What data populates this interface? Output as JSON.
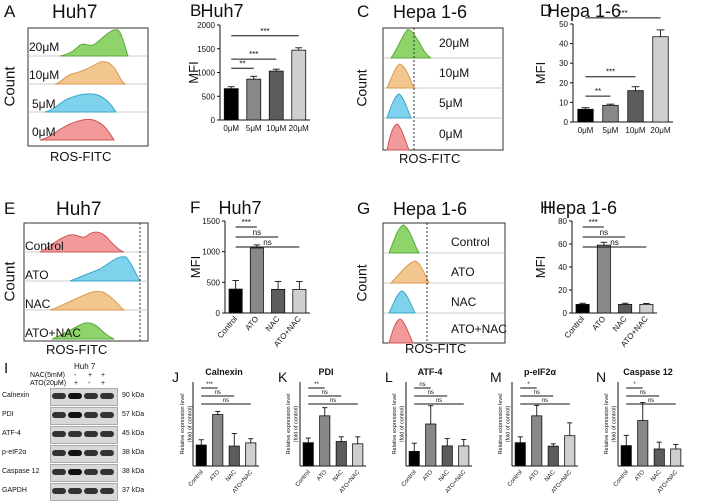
{
  "panels": {
    "A": {
      "letter": "A",
      "title": "Huh7",
      "xlabel": "ROS-FITC",
      "ylabel": "Count",
      "rows": [
        "20μM",
        "10μM",
        "5μM",
        "0μM"
      ]
    },
    "C": {
      "letter": "C",
      "title": "Hepa 1-6",
      "xlabel": "ROS-FITC",
      "ylabel": "Count",
      "rows": [
        "20μM",
        "10μM",
        "5μM",
        "0μM"
      ]
    },
    "E": {
      "letter": "E",
      "title": "Huh7",
      "xlabel": "ROS-FITC",
      "ylabel": "Count",
      "rows": [
        "Control",
        "ATO",
        "NAC",
        "ATO+NAC"
      ]
    },
    "G": {
      "letter": "G",
      "title": "Hepa 1-6",
      "xlabel": "ROS-FITC",
      "ylabel": "Count",
      "rows": [
        "Control",
        "ATO",
        "NAC",
        "ATO+NAC"
      ]
    },
    "I": {
      "letter": "I",
      "title": "Huh 7",
      "treat_rows": [
        {
          "label": "NAC(5mM)",
          "signs": [
            "-",
            "-",
            "+",
            "+"
          ]
        },
        {
          "label": "ATO(20μM)",
          "signs": [
            "-",
            "+",
            "-",
            "+"
          ]
        }
      ],
      "blots": [
        {
          "name": "Calnexin",
          "kda": "90 kDa"
        },
        {
          "name": "PDI",
          "kda": "57 kDa"
        },
        {
          "name": "ATF-4",
          "kda": "45 kDa"
        },
        {
          "name": "p-eIF2α",
          "kda": "38 kDa"
        },
        {
          "name": "Caspase 12",
          "kda": "38 kDa"
        },
        {
          "name": "GAPDH",
          "kda": "37 kDa"
        }
      ]
    }
  },
  "chart_data": [
    {
      "id": "B",
      "letter": "B",
      "type": "bar",
      "title": "Huh7",
      "categories": [
        "0μM",
        "5μM",
        "10μM",
        "20μM"
      ],
      "values": [
        660,
        860,
        1030,
        1470
      ],
      "errors": [
        40,
        60,
        40,
        50
      ],
      "ylabel": "MFI",
      "ylim": [
        0,
        2000
      ],
      "yticks": [
        "0",
        "500",
        "1000",
        "1500",
        "2000"
      ],
      "yticks_n": [
        0,
        500,
        1000,
        1500,
        2000
      ],
      "colors": [
        "#000000",
        "#888888",
        "#5c5c5c",
        "#cfcfcf"
      ],
      "label_rot": 0,
      "sig": [
        {
          "label": "**",
          "from": 0,
          "to": 1
        },
        {
          "label": "***",
          "from": 0,
          "to": 2
        },
        {
          "label": "***",
          "from": 0,
          "to": 3
        }
      ]
    },
    {
      "id": "D",
      "letter": "D",
      "type": "bar",
      "title": "Hepa 1-6",
      "categories": [
        "0μM",
        "5μM",
        "10μM",
        "20μM"
      ],
      "values": [
        6.5,
        8.5,
        16,
        43.5
      ],
      "errors": [
        0.8,
        0.6,
        2,
        3.5
      ],
      "ylabel": "MFI",
      "ylim": [
        0,
        50
      ],
      "yticks": [
        "0",
        "10",
        "20",
        "30",
        "40",
        "50"
      ],
      "yticks_n": [
        0,
        10,
        20,
        30,
        40,
        50
      ],
      "colors": [
        "#000000",
        "#888888",
        "#5c5c5c",
        "#cfcfcf"
      ],
      "label_rot": 0,
      "sig": [
        {
          "label": "**",
          "from": 0,
          "to": 1
        },
        {
          "label": "***",
          "from": 0,
          "to": 2
        },
        {
          "label": "***",
          "from": 0,
          "to": 3
        }
      ]
    },
    {
      "id": "F",
      "letter": "F",
      "type": "bar",
      "title": "Huh7",
      "categories": [
        "Control",
        "ATO",
        "NAC",
        "ATO+NAC"
      ],
      "values": [
        390,
        1060,
        385,
        385
      ],
      "errors": [
        140,
        50,
        130,
        130
      ],
      "ylabel": "MFI",
      "ylim": [
        0,
        1500
      ],
      "yticks": [
        "0",
        "500",
        "1000",
        "1500"
      ],
      "yticks_n": [
        0,
        500,
        1000,
        1500
      ],
      "colors": [
        "#000000",
        "#888888",
        "#5c5c5c",
        "#cfcfcf"
      ],
      "label_rot": -50,
      "sig": [
        {
          "label": "***",
          "from": 0,
          "to": 1
        },
        {
          "label": "ns",
          "from": 0,
          "to": 2
        },
        {
          "label": "ns",
          "from": 0,
          "to": 3
        }
      ]
    },
    {
      "id": "H",
      "letter": "H",
      "type": "bar",
      "title": "Hepa 1-6",
      "categories": [
        "Control",
        "ATO",
        "NAC",
        "ATO+NAC"
      ],
      "values": [
        7.5,
        59,
        7.5,
        7.5
      ],
      "errors": [
        1,
        2.5,
        1,
        0.8
      ],
      "ylabel": "MFI",
      "ylim": [
        0,
        80
      ],
      "yticks": [
        "0",
        "20",
        "40",
        "60",
        "80"
      ],
      "yticks_n": [
        0,
        20,
        40,
        60,
        80
      ],
      "colors": [
        "#000000",
        "#888888",
        "#5c5c5c",
        "#cfcfcf"
      ],
      "label_rot": -50,
      "sig": [
        {
          "label": "***",
          "from": 0,
          "to": 1
        },
        {
          "label": "ns",
          "from": 0,
          "to": 2
        },
        {
          "label": "ns",
          "from": 0,
          "to": 3
        }
      ]
    },
    {
      "id": "J",
      "letter": "J",
      "type": "bar",
      "title": "Calnexin",
      "categories": [
        "Control",
        "ATO",
        "NAC",
        "ATO+NAC"
      ],
      "values": [
        1.0,
        2.45,
        0.95,
        1.1
      ],
      "errors": [
        0.25,
        0.15,
        0.6,
        0.2
      ],
      "ylabel": "Relative expression level\n(fold of control)",
      "ylim": [
        0,
        4
      ],
      "yticks": [],
      "yticks_n": [],
      "colors": [
        "#000000",
        "#888888",
        "#5c5c5c",
        "#cfcfcf"
      ],
      "label_rot": -50,
      "sig": [
        {
          "label": "***",
          "from": 0,
          "to": 1
        },
        {
          "label": "ns",
          "from": 0,
          "to": 2
        },
        {
          "label": "ns",
          "from": 0,
          "to": 3
        }
      ]
    },
    {
      "id": "K",
      "letter": "K",
      "type": "bar",
      "title": "PDI",
      "categories": [
        "Control",
        "ATO",
        "NAC",
        "ATO+NAC"
      ],
      "values": [
        1.0,
        2.15,
        1.05,
        0.95
      ],
      "errors": [
        0.2,
        0.35,
        0.2,
        0.3
      ],
      "ylabel": "Relative expression level\n(fold of control)",
      "ylim": [
        0,
        3.6
      ],
      "yticks": [],
      "yticks_n": [],
      "colors": [
        "#000000",
        "#888888",
        "#5c5c5c",
        "#cfcfcf"
      ],
      "label_rot": -50,
      "sig": [
        {
          "label": "**",
          "from": 0,
          "to": 1
        },
        {
          "label": "ns",
          "from": 0,
          "to": 2
        },
        {
          "label": "ns",
          "from": 0,
          "to": 3
        }
      ]
    },
    {
      "id": "L",
      "letter": "L",
      "type": "bar",
      "title": "ATF-4",
      "categories": [
        "Control",
        "ATO",
        "NAC",
        "ATO+NAC"
      ],
      "values": [
        0.8,
        2.3,
        1.1,
        1.1
      ],
      "errors": [
        0.45,
        1.0,
        0.4,
        0.35
      ],
      "ylabel": "Relative expression level\n(fold of control)",
      "ylim": [
        0,
        4.6
      ],
      "yticks": [],
      "yticks_n": [],
      "colors": [
        "#000000",
        "#888888",
        "#5c5c5c",
        "#cfcfcf"
      ],
      "label_rot": -50,
      "sig": [
        {
          "label": "ns",
          "from": 0,
          "to": 1
        },
        {
          "label": "ns",
          "from": 0,
          "to": 2
        },
        {
          "label": "ns",
          "from": 0,
          "to": 3
        }
      ]
    },
    {
      "id": "M",
      "letter": "M",
      "type": "bar",
      "title": "p-eIF2α",
      "categories": [
        "Control",
        "ATO",
        "NAC",
        "ATO+NAC"
      ],
      "values": [
        1.0,
        2.15,
        0.85,
        1.3
      ],
      "errors": [
        0.25,
        0.45,
        0.1,
        0.55
      ],
      "ylabel": "Relative expression level\n(fold of control)",
      "ylim": [
        0,
        3.6
      ],
      "yticks": [],
      "yticks_n": [],
      "colors": [
        "#000000",
        "#888888",
        "#5c5c5c",
        "#cfcfcf"
      ],
      "label_rot": -50,
      "sig": [
        {
          "label": "*",
          "from": 0,
          "to": 1
        },
        {
          "label": "ns",
          "from": 0,
          "to": 2
        },
        {
          "label": "ns",
          "from": 0,
          "to": 3
        }
      ]
    },
    {
      "id": "N",
      "letter": "N",
      "type": "bar",
      "title": "Caspase 12",
      "categories": [
        "Control",
        "ATO",
        "NAC",
        "ATO+NAC"
      ],
      "values": [
        0.9,
        2.0,
        0.75,
        0.75
      ],
      "errors": [
        0.45,
        0.8,
        0.3,
        0.2
      ],
      "ylabel": "Relative expression level\n(fold of control)",
      "ylim": [
        0,
        3.7
      ],
      "yticks": [],
      "yticks_n": [],
      "colors": [
        "#000000",
        "#888888",
        "#5c5c5c",
        "#cfcfcf"
      ],
      "label_rot": -50,
      "sig": [
        {
          "label": "*",
          "from": 0,
          "to": 1
        },
        {
          "label": "ns",
          "from": 0,
          "to": 2
        },
        {
          "label": "ns",
          "from": 0,
          "to": 3
        }
      ]
    }
  ]
}
